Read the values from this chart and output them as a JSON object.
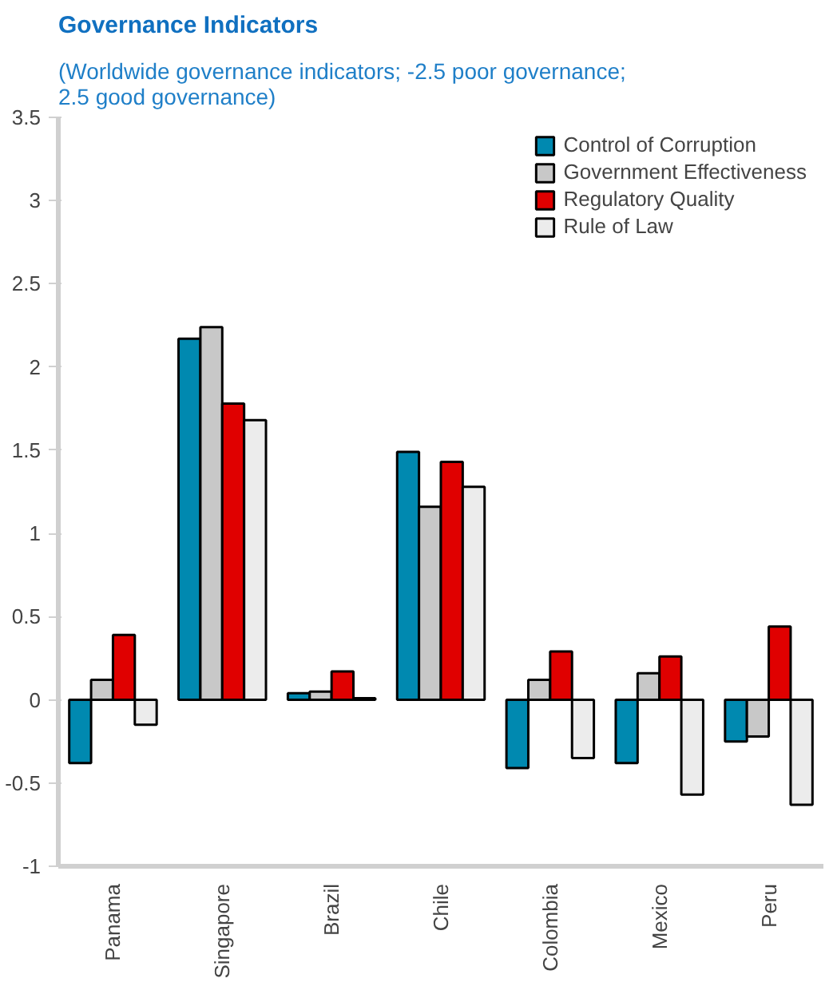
{
  "chart_data": {
    "type": "bar",
    "title": "Governance Indicators",
    "subtitle": "(Worldwide governance indicators; -2.5 poor governance;\n2.5 good governance)",
    "categories": [
      "Panama",
      "Singapore",
      "Brazil",
      "Chile",
      "Colombia",
      "Mexico",
      "Peru"
    ],
    "series": [
      {
        "name": "Control of Corruption",
        "color": "#0089b0",
        "values": [
          -0.38,
          2.17,
          0.04,
          1.49,
          -0.41,
          -0.38,
          -0.25
        ]
      },
      {
        "name": "Government Effectiveness",
        "color": "#c8c8c8",
        "values": [
          0.12,
          2.24,
          0.05,
          1.16,
          0.12,
          0.16,
          -0.22
        ]
      },
      {
        "name": "Regulatory Quality",
        "color": "#e00000",
        "values": [
          0.39,
          1.78,
          0.17,
          1.43,
          0.29,
          0.26,
          0.44
        ]
      },
      {
        "name": "Rule of Law",
        "color": "#ececec",
        "values": [
          -0.15,
          1.68,
          0.01,
          1.28,
          -0.35,
          -0.57,
          -0.63
        ]
      }
    ],
    "ylim": [
      -1,
      3.5
    ],
    "yticks": [
      -1,
      -0.5,
      0,
      0.5,
      1,
      1.5,
      2,
      2.5,
      3,
      3.5
    ],
    "grid": false,
    "legend": "top right"
  }
}
